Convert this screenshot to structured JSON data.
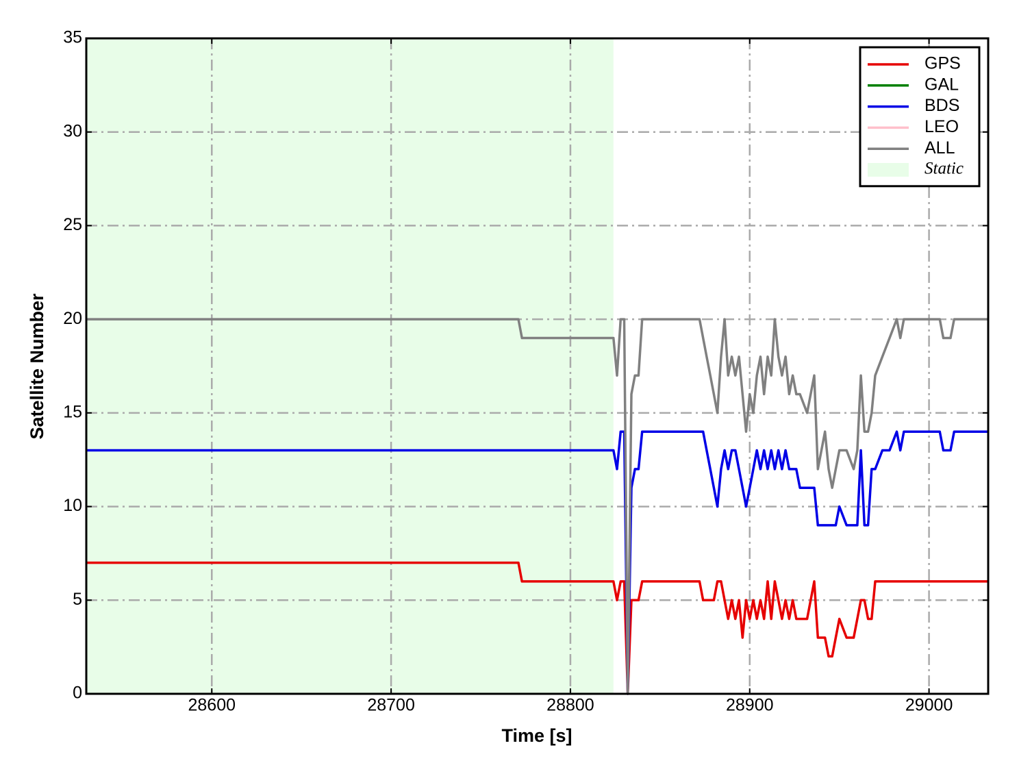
{
  "chart_data": {
    "type": "line",
    "xlabel": "Time [s]",
    "ylabel": "Satellite Number",
    "x": [
      28530,
      28771,
      28773,
      28824,
      28826,
      28828,
      28830,
      28832,
      28834,
      28836,
      28838,
      28840,
      28872,
      28874,
      28876,
      28878,
      28880,
      28882,
      28884,
      28886,
      28888,
      28890,
      28892,
      28894,
      28896,
      28898,
      28900,
      28902,
      28904,
      28906,
      28908,
      28910,
      28912,
      28914,
      28916,
      28918,
      28920,
      28922,
      28924,
      28926,
      28928,
      28932,
      28936,
      28938,
      28942,
      28944,
      28946,
      28948,
      28950,
      28954,
      28958,
      28960,
      28962,
      28964,
      28966,
      28968,
      28970,
      28974,
      28978,
      28982,
      28984,
      28986,
      29006,
      29008,
      29012,
      29014,
      29033
    ],
    "series": [
      {
        "name": "GPS",
        "color": "#e60000",
        "values": [
          7,
          7,
          6,
          6,
          5,
          6,
          6,
          0,
          5,
          5,
          5,
          6,
          6,
          5,
          5,
          5,
          5,
          6,
          6,
          5,
          4,
          5,
          4,
          5,
          3,
          5,
          4,
          5,
          4,
          5,
          4,
          6,
          4,
          6,
          5,
          4,
          5,
          4,
          5,
          4,
          4,
          4,
          6,
          3,
          3,
          2,
          2,
          3,
          4,
          3,
          3,
          4,
          5,
          5,
          4,
          4,
          6,
          6,
          6,
          6,
          6,
          6,
          6,
          6,
          6,
          6,
          6
        ]
      },
      {
        "name": "GAL",
        "color": "#008000",
        "values": [
          null,
          null,
          null,
          null,
          null,
          null,
          null,
          null,
          null,
          null,
          null,
          null,
          null,
          null,
          null,
          null,
          null,
          null,
          null,
          null,
          null,
          null,
          null,
          null,
          null,
          null,
          null,
          null,
          null,
          null,
          null,
          null,
          null,
          null,
          null,
          null,
          null,
          null,
          null,
          null,
          null,
          null,
          null,
          null,
          null,
          null,
          null,
          null,
          null,
          null,
          null,
          null,
          null,
          null,
          null,
          null,
          null,
          null,
          null,
          null,
          null,
          null,
          null,
          null,
          null,
          null,
          null
        ]
      },
      {
        "name": "BDS",
        "color": "#0000e6",
        "values": [
          13,
          13,
          13,
          13,
          12,
          14,
          14,
          0,
          11,
          12,
          12,
          14,
          14,
          14,
          13,
          12,
          11,
          10,
          12,
          13,
          12,
          13,
          13,
          12,
          11,
          10,
          11,
          12,
          13,
          12,
          13,
          12,
          13,
          12,
          13,
          12,
          13,
          12,
          12,
          12,
          11,
          11,
          11,
          9,
          9,
          9,
          9,
          9,
          10,
          9,
          9,
          9,
          13,
          9,
          9,
          12,
          12,
          13,
          13,
          14,
          13,
          14,
          14,
          13,
          13,
          14,
          14
        ]
      },
      {
        "name": "LEO",
        "color": "#ffc0cb",
        "values": [
          null,
          null,
          null,
          null,
          null,
          null,
          null,
          null,
          null,
          null,
          null,
          null,
          null,
          null,
          null,
          null,
          null,
          null,
          null,
          null,
          null,
          null,
          null,
          null,
          null,
          null,
          null,
          null,
          null,
          null,
          null,
          null,
          null,
          null,
          null,
          null,
          null,
          null,
          null,
          null,
          null,
          null,
          null,
          null,
          null,
          null,
          null,
          null,
          null,
          null,
          null,
          null,
          null,
          null,
          null,
          null,
          null,
          null,
          null,
          null,
          null,
          null,
          null,
          null,
          null,
          null,
          null
        ]
      },
      {
        "name": "ALL",
        "color": "#808080",
        "values": [
          20,
          20,
          19,
          19,
          17,
          20,
          20,
          0,
          16,
          17,
          17,
          20,
          20,
          19,
          18,
          17,
          16,
          15,
          18,
          20,
          17,
          18,
          17,
          18,
          16,
          14,
          16,
          15,
          17,
          18,
          16,
          18,
          17,
          20,
          18,
          17,
          18,
          16,
          17,
          16,
          16,
          15,
          17,
          12,
          14,
          12,
          11,
          12,
          13,
          13,
          12,
          13,
          17,
          14,
          14,
          15,
          17,
          18,
          19,
          20,
          19,
          20,
          20,
          19,
          19,
          20,
          20
        ]
      }
    ],
    "shaded_region": {
      "label": "Static",
      "start": 28530,
      "end": 28824,
      "color": "#e8fde8"
    },
    "xlim": [
      28530,
      29033
    ],
    "ylim": [
      0,
      35
    ],
    "xticks": [
      28600,
      28700,
      28800,
      28900,
      29000
    ],
    "yticks": [
      0,
      5,
      10,
      15,
      20,
      25,
      30,
      35
    ],
    "grid": true,
    "legend": "upper right"
  }
}
